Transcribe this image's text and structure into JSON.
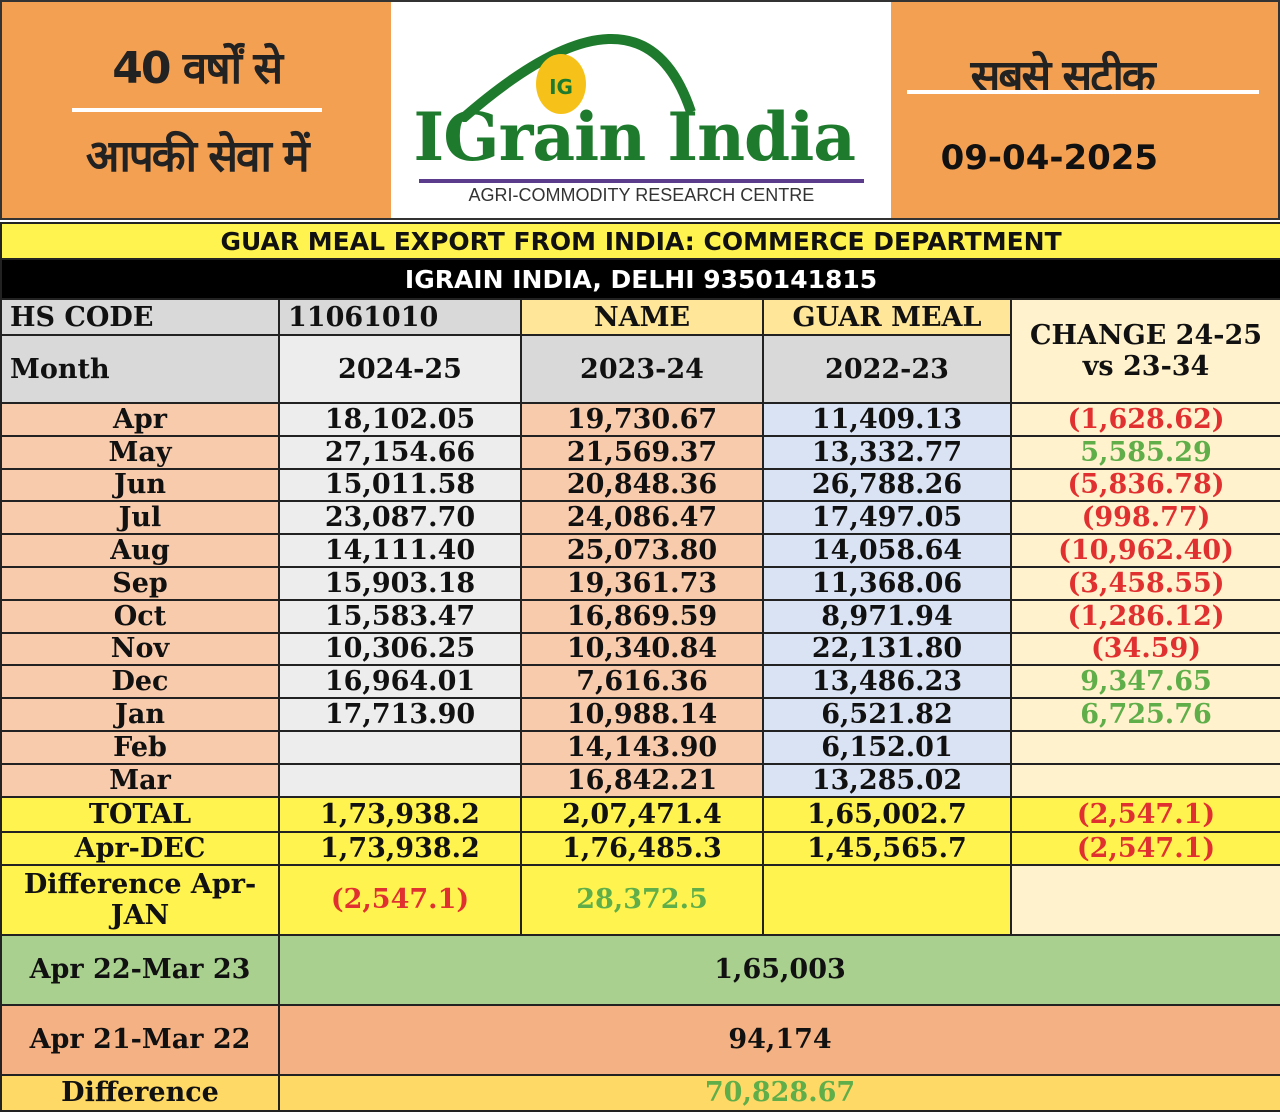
{
  "header": {
    "left_line1": "40 वर्षों से",
    "left_line2": "आपकी सेवा में",
    "logo_name": "IGrain India",
    "logo_badge": "IG",
    "logo_tagline": "AGRI-COMMODITY RESEARCH CENTRE",
    "right_line1": "सबसे सटीक",
    "date": "09-04-2025",
    "brand_green": "#1e7a2c",
    "header_orange": "#f4a052"
  },
  "title": "GUAR MEAL EXPORT FROM INDIA: COMMERCE DEPARTMENT",
  "subtitle": "IGRAIN INDIA, DELHI 9350141815",
  "columns": {
    "hs_code_label": "HS CODE",
    "hs_code": "11061010",
    "name_label": "NAME",
    "name": "GUAR MEAL",
    "change": "CHANGE 24-25 vs 23-34",
    "month": "Month",
    "y1": "2024-25",
    "y2": "2023-24",
    "y3": "2022-23"
  },
  "rows": [
    {
      "m": "Apr",
      "a": "18,102.05",
      "b": "19,730.67",
      "c": "11,409.13",
      "d": "(1,628.62)",
      "neg": true
    },
    {
      "m": "May",
      "a": "27,154.66",
      "b": "21,569.37",
      "c": "13,332.77",
      "d": "5,585.29",
      "neg": false
    },
    {
      "m": "Jun",
      "a": "15,011.58",
      "b": "20,848.36",
      "c": "26,788.26",
      "d": "(5,836.78)",
      "neg": true
    },
    {
      "m": "Jul",
      "a": "23,087.70",
      "b": "24,086.47",
      "c": "17,497.05",
      "d": "(998.77)",
      "neg": true
    },
    {
      "m": "Aug",
      "a": "14,111.40",
      "b": "25,073.80",
      "c": "14,058.64",
      "d": "(10,962.40)",
      "neg": true
    },
    {
      "m": "Sep",
      "a": "15,903.18",
      "b": "19,361.73",
      "c": "11,368.06",
      "d": "(3,458.55)",
      "neg": true
    },
    {
      "m": "Oct",
      "a": "15,583.47",
      "b": "16,869.59",
      "c": "8,971.94",
      "d": "(1,286.12)",
      "neg": true
    },
    {
      "m": "Nov",
      "a": "10,306.25",
      "b": "10,340.84",
      "c": "22,131.80",
      "d": "(34.59)",
      "neg": true
    },
    {
      "m": "Dec",
      "a": "16,964.01",
      "b": "7,616.36",
      "c": "13,486.23",
      "d": "9,347.65",
      "neg": false
    },
    {
      "m": "Jan",
      "a": "17,713.90",
      "b": "10,988.14",
      "c": "6,521.82",
      "d": "6,725.76",
      "neg": false
    },
    {
      "m": "Feb",
      "a": "",
      "b": "14,143.90",
      "c": "6,152.01",
      "d": "",
      "neg": false
    },
    {
      "m": "Mar",
      "a": "",
      "b": "16,842.21",
      "c": "13,285.02",
      "d": "",
      "neg": false
    }
  ],
  "total": {
    "label": "TOTAL",
    "a": "1,73,938.2",
    "b": "2,07,471.4",
    "c": "1,65,002.7",
    "d": "(2,547.1)"
  },
  "apr_dec": {
    "label": "Apr-DEC",
    "a": "1,73,938.2",
    "b": "1,76,485.3",
    "c": "1,45,565.7",
    "d": "(2,547.1)"
  },
  "diff_apr_jan": {
    "label": "Difference Apr-JAN",
    "a": "(2,547.1)",
    "b": "28,372.5"
  },
  "fy23": {
    "label": "Apr 22-Mar 23",
    "value": "1,65,003"
  },
  "fy22": {
    "label": "Apr 21-Mar 22",
    "value": "94,174"
  },
  "difference": {
    "label": "Difference",
    "value": "70,828.67"
  }
}
